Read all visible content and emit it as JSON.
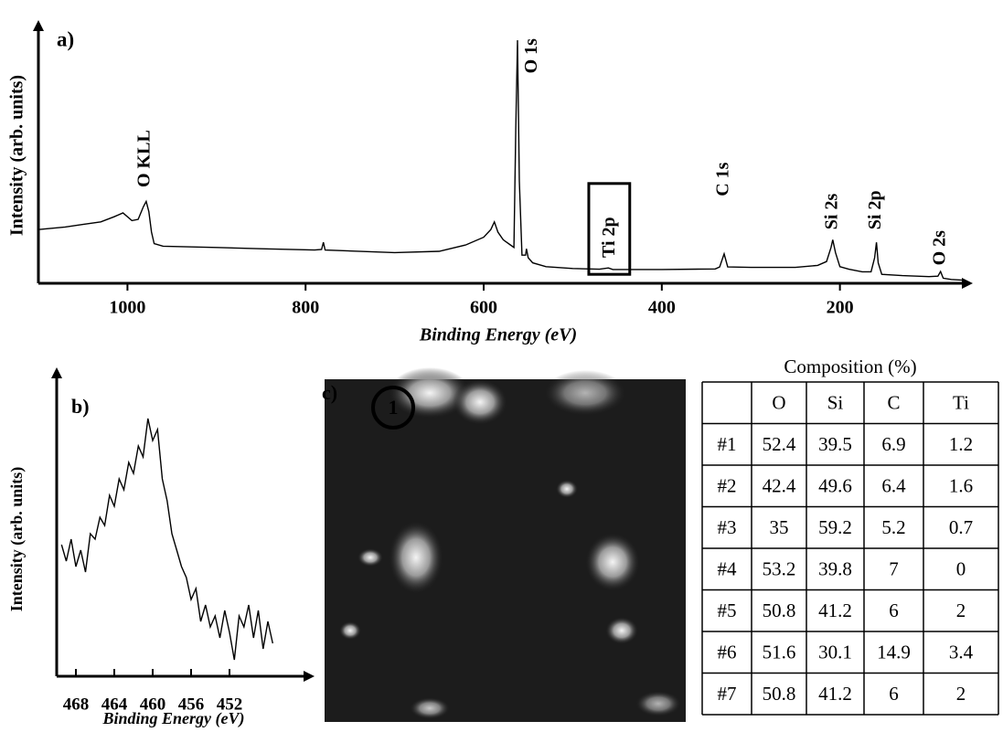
{
  "chart_data": [
    {
      "type": "line",
      "panel_label": "a)",
      "xlabel": "Binding Energy (eV)",
      "ylabel": "Intensity (arb. units)",
      "x": [
        1100,
        1070,
        1050,
        1030,
        1015,
        1005,
        995,
        988,
        982,
        979,
        976,
        973,
        970,
        960,
        900,
        850,
        790,
        782,
        780,
        778,
        700,
        650,
        620,
        600,
        592,
        588,
        584,
        578,
        570,
        566,
        564,
        562,
        560,
        557,
        553,
        552,
        550,
        545,
        530,
        500,
        470,
        460,
        455,
        400,
        340,
        335,
        330,
        326,
        300,
        250,
        225,
        215,
        210,
        208,
        205,
        200,
        190,
        175,
        165,
        161,
        159,
        157,
        153,
        130,
        100,
        90,
        87,
        84,
        75,
        62
      ],
      "values": [
        21,
        22,
        23,
        24,
        26,
        27.5,
        24.5,
        25,
        30,
        32,
        28,
        20,
        15.5,
        14.5,
        14,
        13.5,
        13,
        13.2,
        16,
        13,
        12,
        12.5,
        15,
        18,
        21,
        24,
        20,
        17,
        15,
        14,
        60,
        95,
        40,
        11,
        11,
        13.5,
        10,
        8,
        6.5,
        5.8,
        5.5,
        6,
        5.4,
        5.4,
        5.6,
        6.4,
        11.5,
        6.4,
        6.2,
        6.2,
        7,
        8.5,
        14,
        17,
        12,
        6.5,
        5.5,
        4.5,
        4.5,
        10,
        16,
        8,
        3.5,
        3,
        2.6,
        2.8,
        4.6,
        2,
        1.5,
        1.2
      ],
      "color": "#000000",
      "xlim": [
        1100,
        60
      ],
      "xticks": [
        1000,
        800,
        600,
        400,
        200
      ],
      "ylim": [
        0,
        100
      ],
      "annotations": [
        {
          "text": "O KLL",
          "x": 980,
          "y": 37.5
        },
        {
          "text": "O 1s",
          "x": 545,
          "y": 82
        },
        {
          "text": "Ti 2p",
          "x": 458,
          "y": 10
        },
        {
          "text": "C 1s",
          "x": 330,
          "y": 34
        },
        {
          "text": "Si 2s",
          "x": 208,
          "y": 21
        },
        {
          "text": "Si 2p",
          "x": 159,
          "y": 21
        },
        {
          "text": "O 2s",
          "x": 87,
          "y": 7
        }
      ],
      "highlight_box": {
        "x": [
          482,
          436
        ],
        "y": [
          3.5,
          39
        ]
      }
    },
    {
      "type": "line",
      "panel_label": "b)",
      "xlabel": "Binding Energy (eV)",
      "ylabel": "Intensity (arb. units)",
      "x": [
        469.5,
        469,
        468.5,
        468,
        467.5,
        467,
        466.5,
        466,
        465.5,
        465,
        464.5,
        464,
        463.5,
        463,
        462.5,
        462,
        461.5,
        461,
        460.5,
        460,
        459.5,
        459,
        458.5,
        458,
        457.5,
        457,
        456.5,
        456,
        455.5,
        455,
        454.5,
        454,
        453.5,
        453,
        452.5,
        452,
        451.5,
        451,
        450.5,
        450,
        449.5,
        449,
        448.5,
        448,
        447.5
      ],
      "values": [
        48,
        42,
        50,
        40,
        46,
        38,
        52,
        50,
        58,
        55,
        66,
        62,
        72,
        68,
        78,
        74,
        84,
        80,
        94,
        86,
        90,
        72,
        64,
        52,
        46,
        40,
        36,
        28,
        32,
        20,
        26,
        18,
        22,
        14,
        24,
        16,
        6,
        22,
        18,
        26,
        14,
        24,
        10,
        20,
        12
      ],
      "color": "#000000",
      "xlim": [
        470,
        444
      ],
      "xticks": [
        468,
        464,
        460,
        456,
        452
      ],
      "ylim": [
        0,
        100
      ]
    }
  ],
  "image": {
    "panel_label": "c)",
    "marker": "1"
  },
  "table": {
    "title": "Composition (%)",
    "columns": [
      "O",
      "Si",
      "C",
      "Ti"
    ],
    "rows": [
      {
        "label": "#1",
        "values": [
          52.4,
          39.5,
          6.9,
          1.2
        ]
      },
      {
        "label": "#2",
        "values": [
          42.4,
          49.6,
          6.4,
          1.6
        ]
      },
      {
        "label": "#3",
        "values": [
          35,
          59.2,
          5.2,
          0.7
        ]
      },
      {
        "label": "#4",
        "values": [
          53.2,
          39.8,
          7,
          0
        ]
      },
      {
        "label": "#5",
        "values": [
          50.8,
          41.2,
          6,
          2
        ]
      },
      {
        "label": "#6",
        "values": [
          51.6,
          30.1,
          14.9,
          3.4
        ]
      },
      {
        "label": "#7",
        "values": [
          50.8,
          41.2,
          6,
          2
        ]
      }
    ]
  }
}
